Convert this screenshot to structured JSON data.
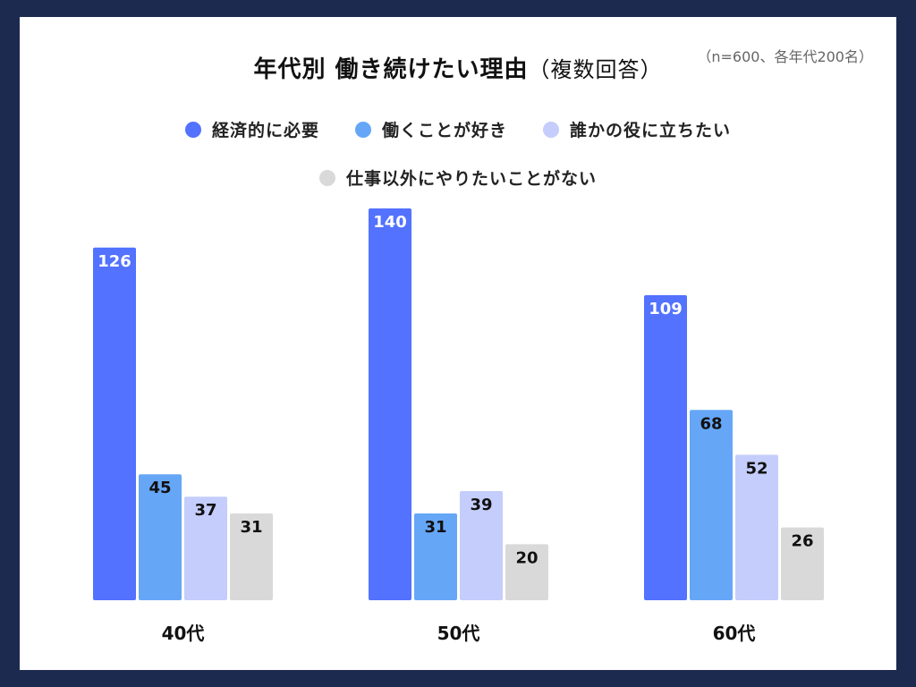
{
  "title": "年代別 働き続けたい理由",
  "title_paren": "（複数回答）",
  "note": "（n=600、各年代200名）",
  "colors": {
    "background": "#1c2a50",
    "card": "#ffffff"
  },
  "legend": [
    {
      "label": "経済的に必要",
      "color": "#5272ff"
    },
    {
      "label": "働くことが好き",
      "color": "#66a6f7"
    },
    {
      "label": "誰かの役に立ちたい",
      "color": "#c4cdfb"
    },
    {
      "label": "仕事以外にやりたいことがない",
      "color": "#d9d9d9"
    }
  ],
  "chart_data": {
    "type": "bar",
    "title": "年代別 働き続けたい理由（複数回答）",
    "subtitle": "（n=600、各年代200名）",
    "categories": [
      "40代",
      "50代",
      "60代"
    ],
    "series": [
      {
        "name": "経済的に必要",
        "values": [
          126,
          140,
          109
        ],
        "color": "#5272ff",
        "label_color": "#ffffff"
      },
      {
        "name": "働くことが好き",
        "values": [
          45,
          31,
          68
        ],
        "color": "#66a6f7",
        "label_color": "#111111"
      },
      {
        "name": "誰かの役に立ちたい",
        "values": [
          37,
          39,
          52
        ],
        "color": "#c4cdfb",
        "label_color": "#111111"
      },
      {
        "name": "仕事以外にやりたいことがない",
        "values": [
          31,
          20,
          26
        ],
        "color": "#d9d9d9",
        "label_color": "#111111"
      }
    ],
    "xlabel": "",
    "ylabel": "",
    "ylim": [
      0,
      140
    ],
    "grid": false,
    "legend_position": "top-center"
  }
}
